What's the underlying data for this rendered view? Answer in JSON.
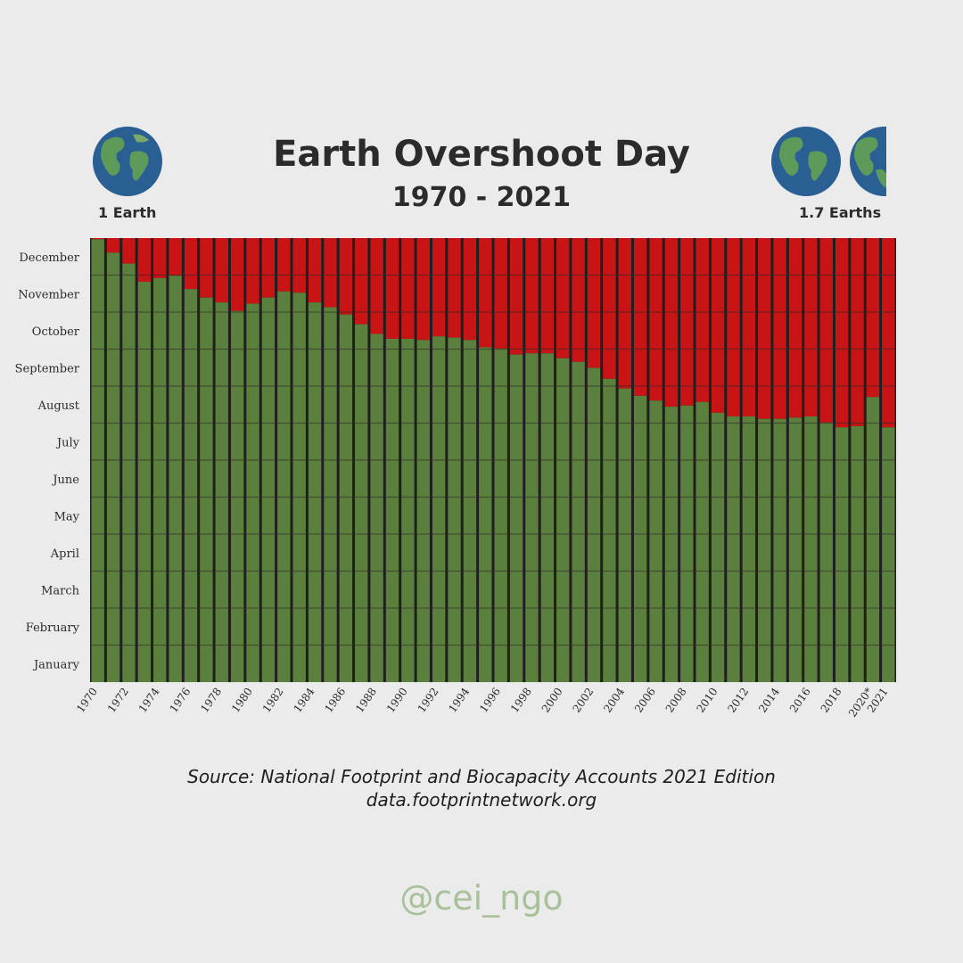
{
  "header": {
    "title": "Earth Overshoot Day",
    "subtitle": "1970 - 2021",
    "left_label": "1 Earth",
    "right_label": "1.7 Earths"
  },
  "icons": {
    "left": "earth-globe-icon",
    "right": "earth-globes-icon"
  },
  "colors": {
    "green": "#5b7f3c",
    "red": "#c81414",
    "background": "#ebebeb"
  },
  "source": {
    "line1": "Source: National Footprint and Biocapacity Accounts 2021 Edition",
    "line2": "data.footprintnetwork.org"
  },
  "handle": "@cei_ngo",
  "chart_data": {
    "type": "bar",
    "stacked": true,
    "title": "Earth Overshoot Day",
    "subtitle": "1970 - 2021",
    "y_categories": [
      "January",
      "February",
      "March",
      "April",
      "May",
      "June",
      "July",
      "August",
      "September",
      "October",
      "November",
      "December"
    ],
    "ylim": [
      0,
      366
    ],
    "x_tick_labels": [
      "1970",
      "1972",
      "1974",
      "1976",
      "1978",
      "1980",
      "1982",
      "1984",
      "1986",
      "1988",
      "1990",
      "1992",
      "1994",
      "1996",
      "1998",
      "2000",
      "2002",
      "2004",
      "2006",
      "2008",
      "2010",
      "2012",
      "2014",
      "2016",
      "2018",
      "2020*",
      "2021"
    ],
    "categories": [
      1970,
      1971,
      1972,
      1973,
      1974,
      1975,
      1976,
      1977,
      1978,
      1979,
      1980,
      1981,
      1982,
      1983,
      1984,
      1985,
      1986,
      1987,
      1988,
      1989,
      1990,
      1991,
      1992,
      1993,
      1994,
      1995,
      1996,
      1997,
      1998,
      1999,
      2000,
      2001,
      2002,
      2003,
      2004,
      2005,
      2006,
      2007,
      2008,
      2009,
      2010,
      2011,
      2012,
      2013,
      2014,
      2015,
      2016,
      2017,
      2018,
      2019,
      2020,
      2021
    ],
    "series": [
      {
        "color": "#5b7f3c",
        "values": [
          365,
          354,
          345,
          330,
          333,
          335,
          324,
          317,
          313,
          306,
          312,
          317,
          322,
          321,
          313,
          309,
          303,
          295,
          287,
          283,
          283,
          282,
          285,
          284,
          282,
          276,
          275,
          270,
          271,
          271,
          267,
          264,
          259,
          250,
          242,
          236,
          232,
          227,
          228,
          231,
          222,
          219,
          219,
          217,
          217,
          218,
          219,
          214,
          210,
          211,
          235,
          210
        ]
      },
      {
        "color": "#c81414",
        "values": [
          1,
          12,
          21,
          36,
          33,
          31,
          42,
          49,
          53,
          60,
          54,
          49,
          44,
          45,
          53,
          57,
          63,
          71,
          79,
          83,
          83,
          84,
          81,
          82,
          84,
          90,
          91,
          96,
          95,
          95,
          99,
          102,
          107,
          116,
          124,
          130,
          134,
          139,
          138,
          135,
          144,
          147,
          147,
          149,
          149,
          148,
          147,
          152,
          156,
          155,
          131,
          156
        ]
      }
    ]
  }
}
